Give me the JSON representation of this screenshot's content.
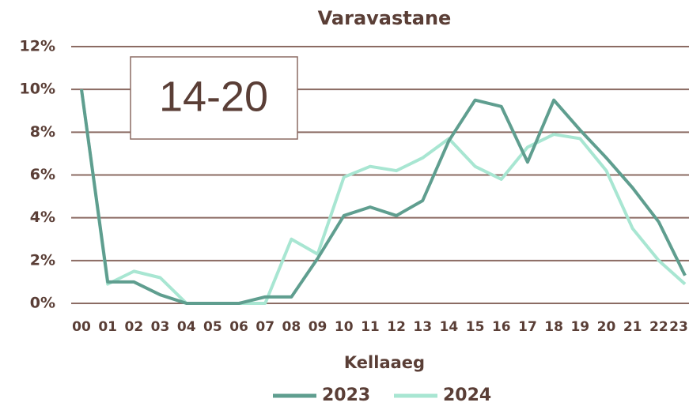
{
  "chart_data": {
    "type": "line",
    "title": "Varavastane",
    "xlabel": "Kellaaeg",
    "annotation": "14-20",
    "categories": [
      "00",
      "01",
      "02",
      "03",
      "04",
      "05",
      "06",
      "07",
      "08",
      "09",
      "10",
      "11",
      "12",
      "13",
      "14",
      "15",
      "16",
      "17",
      "18",
      "19",
      "20",
      "21",
      "22",
      "23"
    ],
    "series": [
      {
        "name": "2023",
        "color": "#5f9e8f",
        "values": [
          10,
          1.0,
          1.0,
          0.4,
          0,
          0,
          0,
          0.3,
          0.3,
          2.1,
          4.1,
          4.5,
          4.1,
          4.8,
          7.6,
          9.5,
          9.2,
          6.6,
          9.5,
          8.1,
          6.8,
          5.4,
          3.8,
          1.3
        ]
      },
      {
        "name": "2024",
        "color": "#a8e6d2",
        "values": [
          10,
          0.9,
          1.5,
          1.2,
          0,
          0,
          0,
          0,
          3.0,
          2.3,
          5.9,
          6.4,
          6.2,
          6.8,
          7.7,
          6.4,
          5.8,
          7.3,
          7.9,
          7.7,
          6.2,
          3.5,
          2.0,
          0.9
        ]
      }
    ],
    "ylim": [
      0,
      12
    ],
    "yticks": [
      {
        "value": 0,
        "label": "0%"
      },
      {
        "value": 2,
        "label": "2%"
      },
      {
        "value": 4,
        "label": "4%"
      },
      {
        "value": 6,
        "label": "6%"
      },
      {
        "value": 8,
        "label": "8%"
      },
      {
        "value": 10,
        "label": "10%"
      },
      {
        "value": 12,
        "label": "12%"
      }
    ],
    "grid": true,
    "legend": "bottom"
  }
}
